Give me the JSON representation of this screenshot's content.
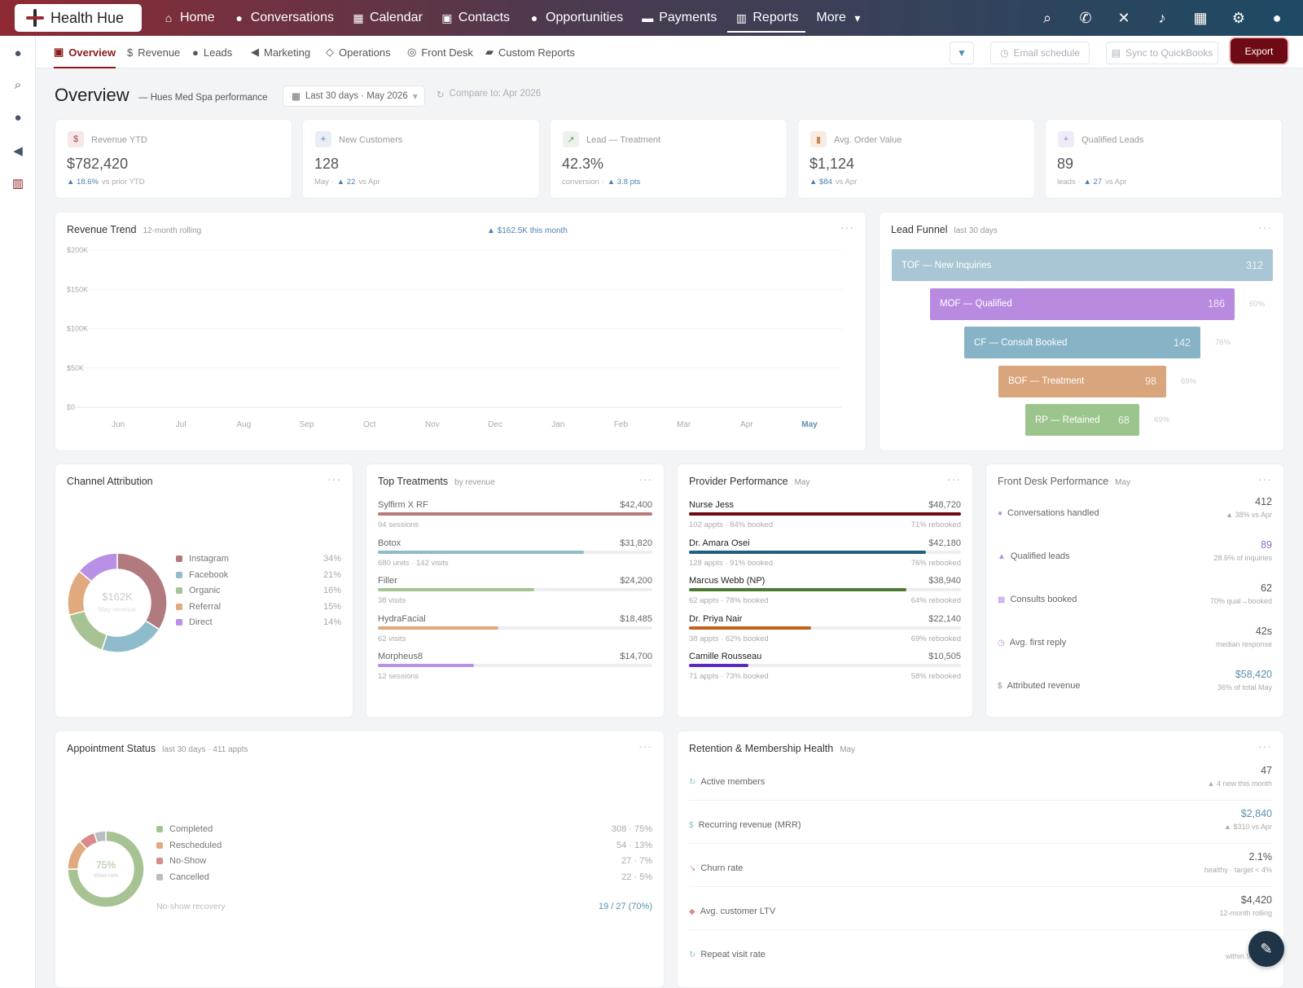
{
  "app": {
    "name": "Health Hue"
  },
  "topnav": {
    "items": [
      {
        "label": "Home",
        "icon": "home-icon"
      },
      {
        "label": "Conversations",
        "icon": "chat-icon"
      },
      {
        "label": "Calendar",
        "icon": "calendar-icon"
      },
      {
        "label": "Contacts",
        "icon": "contact-card-icon"
      },
      {
        "label": "Opportunities",
        "icon": "lightbulb-icon"
      },
      {
        "label": "Payments",
        "icon": "credit-card-icon"
      },
      {
        "label": "Reports",
        "icon": "bar-chart-icon"
      },
      {
        "label": "More",
        "icon": "caret-down-icon"
      }
    ],
    "active": "Reports",
    "right_icons": [
      "search-icon",
      "phone-icon",
      "shuffle-icon",
      "bell-icon",
      "calendar-icon",
      "gear-icon",
      "user-icon"
    ]
  },
  "sidebar": {
    "icons": [
      "chat-icon",
      "search-icon",
      "user-icon",
      "megaphone-icon",
      "bar-chart-icon"
    ]
  },
  "subnav": {
    "tabs": [
      {
        "label": "Overview",
        "icon": "layout-icon"
      },
      {
        "label": "Revenue",
        "icon": "dollar-icon"
      },
      {
        "label": "Leads",
        "icon": "users-icon"
      },
      {
        "label": "Marketing",
        "icon": "megaphone-icon"
      },
      {
        "label": "Operations",
        "icon": "shield-icon"
      },
      {
        "label": "Front Desk",
        "icon": "headset-icon"
      },
      {
        "label": "Custom Reports",
        "icon": "folder-icon"
      }
    ],
    "active": "Overview",
    "email_schedule": "Email schedule",
    "sync": "Sync to QuickBooks",
    "export": "Export"
  },
  "header": {
    "title": "Overview",
    "subtitle": "— Hues Med Spa performance",
    "date_range": "Last 30 days · May 2026",
    "compare": "Compare to: Apr 2026"
  },
  "kpis": [
    {
      "label": "Revenue YTD",
      "value": "$782,420",
      "prefix": "",
      "delta": "▲ 18.6%",
      "suffix": "vs prior YTD",
      "icon": "$",
      "icon_bg": "#f7e7e7",
      "icon_color": "#9a4b4b"
    },
    {
      "label": "New Customers",
      "value": "128",
      "prefix": "May ·",
      "delta": "▲ 22",
      "suffix": "vs Apr",
      "icon": "+",
      "icon_bg": "#e8eef5",
      "icon_color": "#5a7da0"
    },
    {
      "label": "Lead — Treatment",
      "value": "42.3%",
      "prefix": "conversion ·",
      "delta": "▲ 3.8 pts",
      "suffix": "",
      "icon": "↗",
      "icon_bg": "#edf3ea",
      "icon_color": "#6e9a62"
    },
    {
      "label": "Avg. Order Value",
      "value": "$1,124",
      "prefix": "",
      "delta": "▲ $84",
      "suffix": "vs Apr",
      "icon": "▮",
      "icon_bg": "#f8ece2",
      "icon_color": "#c48a5c"
    },
    {
      "label": "Qualified Leads",
      "value": "89",
      "prefix": "leads ·",
      "delta": "▲ 27",
      "suffix": "vs Apr",
      "icon": "+",
      "icon_bg": "#f1eaf7",
      "icon_color": "#9a79be"
    }
  ],
  "revenue_trend": {
    "title": "Revenue Trend",
    "subtitle": "12-month rolling",
    "callout": "▲ $162.5K this month",
    "chart_data": {
      "type": "line",
      "x": [
        "Jun",
        "Jul",
        "Aug",
        "Sep",
        "Oct",
        "Nov",
        "Dec",
        "Jan",
        "Feb",
        "Mar",
        "Apr",
        "May"
      ],
      "y_ticks": [
        "$200K",
        "$150K",
        "$100K",
        "$50K",
        "$0"
      ],
      "ylim": [
        0,
        200000
      ],
      "series": []
    }
  },
  "lead_funnel": {
    "title": "Lead Funnel",
    "subtitle": "last 30 days",
    "chart_data": {
      "type": "bar",
      "categories": [
        "TOF — New Inquiries",
        "MOF — Qualified",
        "CF — Consult Booked",
        "BOF — Treatment",
        "RP — Retained"
      ],
      "values": [
        312,
        186,
        142,
        98,
        68
      ],
      "labels": [
        "312",
        "186",
        "142",
        "98",
        "68"
      ],
      "conversion": [
        "",
        "60%",
        "76%",
        "69%",
        "69%"
      ],
      "colors": [
        "#a9c6d4",
        "#b88be0",
        "#86b3c6",
        "#d9a57c",
        "#9cc48d"
      ]
    }
  },
  "channel_attribution": {
    "title": "Channel Attribution",
    "center_value": "$162K",
    "center_label": "May revenue",
    "chart_data": {
      "type": "pie",
      "categories": [
        "Instagram",
        "Facebook",
        "Organic",
        "Referral",
        "Direct"
      ],
      "values": [
        34,
        21,
        16,
        15,
        14
      ],
      "labels": [
        "34%",
        "21%",
        "16%",
        "15%",
        "14%"
      ],
      "colors": [
        "#b07a7e",
        "#8fbccb",
        "#a7c393",
        "#e0a97e",
        "#b891e6"
      ]
    }
  },
  "top_treatments": {
    "title": "Top Treatments",
    "subtitle": "by revenue",
    "items": [
      {
        "name": "Sylfirm X RF",
        "value": "$42,400",
        "meta": "94 sessions",
        "pct": 100,
        "color": "#b77a7c"
      },
      {
        "name": "Botox",
        "value": "$31,820",
        "meta": "680 units · 142 visits",
        "pct": 75,
        "color": "#8fbccb"
      },
      {
        "name": "Filler",
        "value": "$24,200",
        "meta": "38 visits",
        "pct": 57,
        "color": "#a7c393"
      },
      {
        "name": "HydraFacial",
        "value": "$18,485",
        "meta": "62 visits",
        "pct": 44,
        "color": "#e0a97e"
      },
      {
        "name": "Morpheus8",
        "value": "$14,700",
        "meta": "12 sessions",
        "pct": 35,
        "color": "#b891e6"
      }
    ]
  },
  "provider_performance": {
    "title": "Provider Performance",
    "subtitle": "May",
    "items": [
      {
        "name": "Nurse Jess",
        "value": "$48,720",
        "meta": "102 appts · 84% booked",
        "rebooked": "71% rebooked",
        "pct": 100,
        "color": "#6d0a14"
      },
      {
        "name": "Dr. Amara Osei",
        "value": "$42,180",
        "meta": "128 appts · 91% booked",
        "rebooked": "76% rebooked",
        "pct": 87,
        "color": "#1d5f80"
      },
      {
        "name": "Marcus Webb (NP)",
        "value": "$38,940",
        "meta": "62 appts · 78% booked",
        "rebooked": "64% rebooked",
        "pct": 80,
        "color": "#4e7a34"
      },
      {
        "name": "Dr. Priya Nair",
        "value": "$22,140",
        "meta": "38 appts · 62% booked",
        "rebooked": "69% rebooked",
        "pct": 45,
        "color": "#c2621d"
      },
      {
        "name": "Camille Rousseau",
        "value": "$10,505",
        "meta": "71 appts · 73% booked",
        "rebooked": "58% rebooked",
        "pct": 22,
        "color": "#5b2bbf"
      }
    ]
  },
  "front_desk": {
    "title": "Front Desk Performance",
    "subtitle": "May",
    "items": [
      {
        "label": "Conversations handled",
        "icon": "chat-icon",
        "glyph": "●",
        "color": "#b891e6",
        "value": "412",
        "sub": "▲ 38% vs Apr",
        "value_color": "#555"
      },
      {
        "label": "Qualified leads",
        "icon": "user-plus-icon",
        "glyph": "▲",
        "color": "#b891e6",
        "value": "89",
        "sub": "28.6% of inquiries",
        "value_color": "#8f6bbf"
      },
      {
        "label": "Consults booked",
        "icon": "calendar-icon",
        "glyph": "▦",
        "color": "#b891e6",
        "value": "62",
        "sub": "70% qual→booked",
        "value_color": "#555"
      },
      {
        "label": "Avg. first reply",
        "icon": "clock-icon",
        "glyph": "◷",
        "color": "#b891e6",
        "value": "42s",
        "sub": "median response",
        "value_color": "#555"
      },
      {
        "label": "Attributed revenue",
        "icon": "dollar-icon",
        "glyph": "$",
        "color": "#8a99aa",
        "value": "$58,420",
        "sub": "36% of total May",
        "value_color": "#5a8fb0"
      }
    ]
  },
  "appointment_status": {
    "title": "Appointment Status",
    "subtitle": "last 30 days · 411 appts",
    "center_value": "75%",
    "center_label": "show rate",
    "recovery_label": "No-show recovery",
    "recovery_value": "19 / 27 (70%)",
    "chart_data": {
      "type": "pie",
      "categories": [
        "Completed",
        "Rescheduled",
        "No-Show",
        "Cancelled"
      ],
      "values": [
        75,
        13,
        7,
        5
      ],
      "labels": [
        "308 · 75%",
        "54 · 13%",
        "27 · 7%",
        "22 · 5%"
      ],
      "colors": [
        "#a7c393",
        "#e0a97e",
        "#d98b8b",
        "#b9bec4"
      ]
    }
  },
  "retention": {
    "title": "Retention & Membership Health",
    "subtitle": "May",
    "items": [
      {
        "label": "Active members",
        "icon": "refresh-icon",
        "glyph": "↻",
        "color": "#8fbccb",
        "value": "47",
        "sub": "▲ 4 new this month",
        "value_color": "#555"
      },
      {
        "label": "Recurring revenue (MRR)",
        "icon": "dollar-icon",
        "glyph": "$",
        "color": "#8fbccb",
        "value": "$2,840",
        "sub": "▲ $310 vs Apr",
        "value_color": "#5a8fb0"
      },
      {
        "label": "Churn rate",
        "icon": "trend-down-icon",
        "glyph": "↘",
        "color": "#d98b8b",
        "value": "2.1%",
        "sub": "healthy · target < 4%",
        "value_color": "#555"
      },
      {
        "label": "Avg. customer LTV",
        "icon": "gem-icon",
        "glyph": "◆",
        "color": "#d98b8b",
        "value": "$4,420",
        "sub": "12-month rolling",
        "value_color": "#555"
      },
      {
        "label": "Repeat visit rate",
        "icon": "repeat-icon",
        "glyph": "↻",
        "color": "#8fbccb",
        "value": "",
        "sub": "within 90 days",
        "value_color": "#555"
      }
    ]
  }
}
